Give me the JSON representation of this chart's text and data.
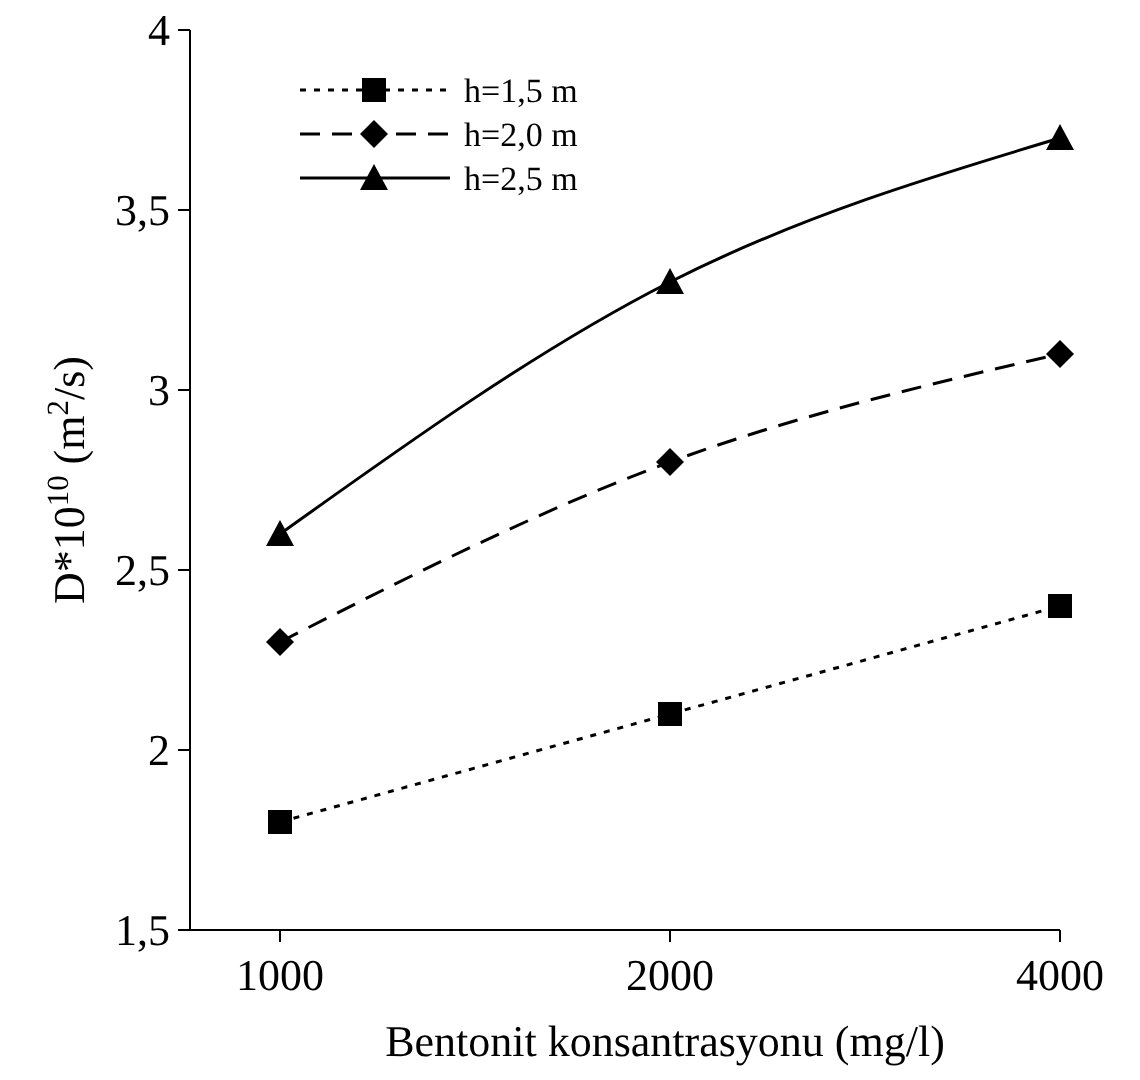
{
  "chart_data": {
    "type": "line",
    "xlabel": "Bentonit konsantrasyonu (mg/l)",
    "ylabel": "D*10$^{10}$ (m$^{2}$/s)",
    "categories": [
      "1000",
      "2000",
      "4000"
    ],
    "series": [
      {
        "name": "h=1,5 m",
        "color": "#000000",
        "marker": "square",
        "line_style": "dotted",
        "values": [
          1.8,
          2.1,
          2.4
        ]
      },
      {
        "name": "h=2,0 m",
        "color": "#000000",
        "marker": "diamond",
        "line_style": "dashed",
        "values": [
          2.3,
          2.8,
          3.1
        ]
      },
      {
        "name": "h=2,5 m",
        "color": "#000000",
        "marker": "triangle",
        "line_style": "solid",
        "values": [
          2.6,
          3.3,
          3.7
        ]
      }
    ],
    "ylim": [
      1.5,
      4
    ],
    "yticks": [
      {
        "value": 1.5,
        "label": "1,5"
      },
      2,
      {
        "value": 2.5,
        "label": "2,5"
      },
      3,
      {
        "value": 3.5,
        "label": "3,5"
      },
      4
    ],
    "grid": false,
    "legend": "top left"
  }
}
